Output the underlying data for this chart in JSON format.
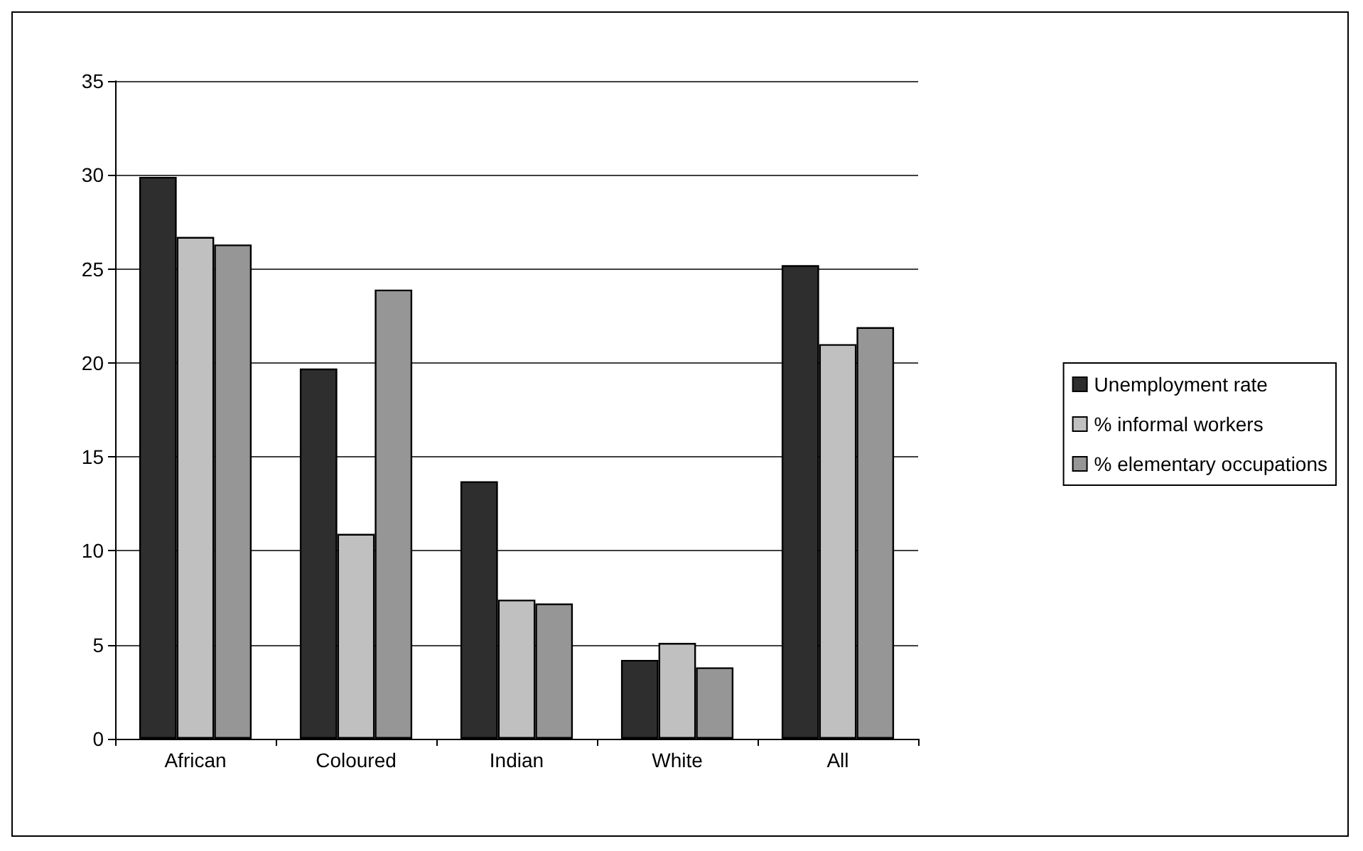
{
  "chart_data": {
    "type": "bar",
    "categories": [
      "African",
      "Coloured",
      "Indian",
      "White",
      "All"
    ],
    "series": [
      {
        "name": "Unemployment rate",
        "color": "#2e2e2e",
        "values": [
          29.9,
          19.7,
          13.7,
          4.2,
          25.2
        ]
      },
      {
        "name": "% informal workers",
        "color": "#c0c0c0",
        "values": [
          26.7,
          10.9,
          7.4,
          5.1,
          21.0
        ]
      },
      {
        "name": "% elementary occupations",
        "color": "#969696",
        "values": [
          26.3,
          23.9,
          7.2,
          3.8,
          21.9
        ]
      }
    ],
    "ylim": [
      0,
      35
    ],
    "yticks": [
      0,
      5,
      10,
      15,
      20,
      25,
      30,
      35
    ],
    "grid": "y",
    "legend": "right"
  }
}
